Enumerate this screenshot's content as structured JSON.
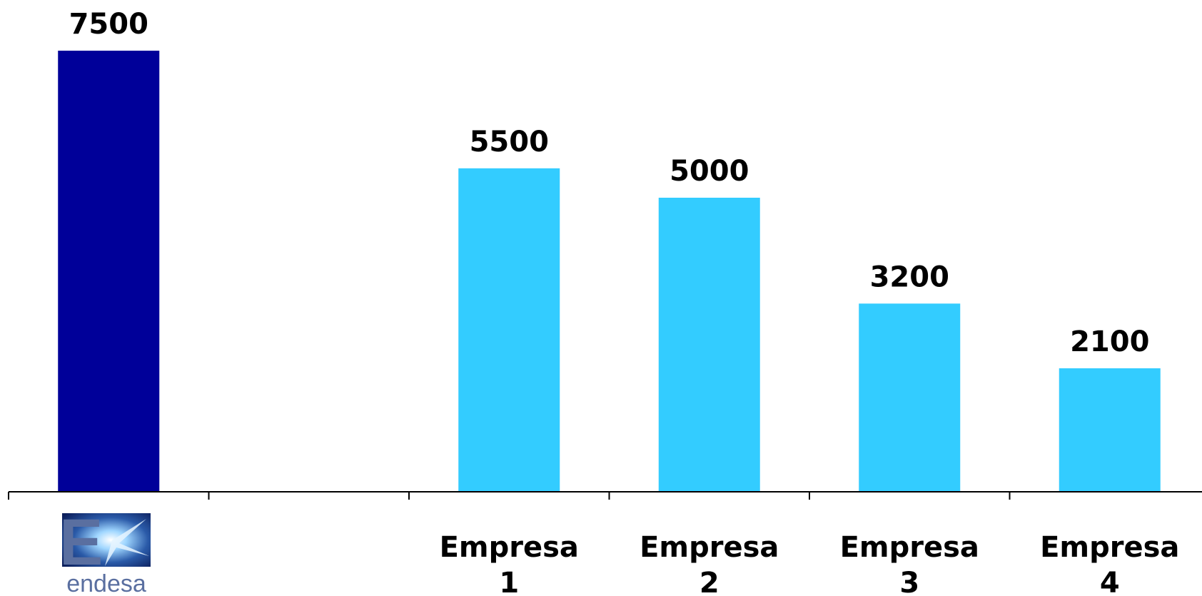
{
  "chart_data": {
    "type": "bar",
    "categories": [
      "endesa",
      "",
      "Empresa 1",
      "Empresa 2",
      "Empresa 3",
      "Empresa 4"
    ],
    "category_lines": [
      [
        "endesa"
      ],
      [
        ""
      ],
      [
        "Empresa",
        "1"
      ],
      [
        "Empresa",
        "2"
      ],
      [
        "Empresa",
        "3"
      ],
      [
        "Empresa",
        "4"
      ]
    ],
    "values": [
      7500,
      null,
      5500,
      5000,
      3200,
      2100
    ],
    "value_labels": [
      "7500",
      "",
      "5500",
      "5000",
      "3200",
      "2100"
    ],
    "ylim": [
      0,
      7500
    ],
    "grid": false,
    "colors": [
      "#000099",
      null,
      "#33ccff",
      "#33ccff",
      "#33ccff",
      "#33ccff"
    ],
    "first_category_logo": {
      "text": "endesa",
      "icon": "endesa-logo"
    }
  }
}
